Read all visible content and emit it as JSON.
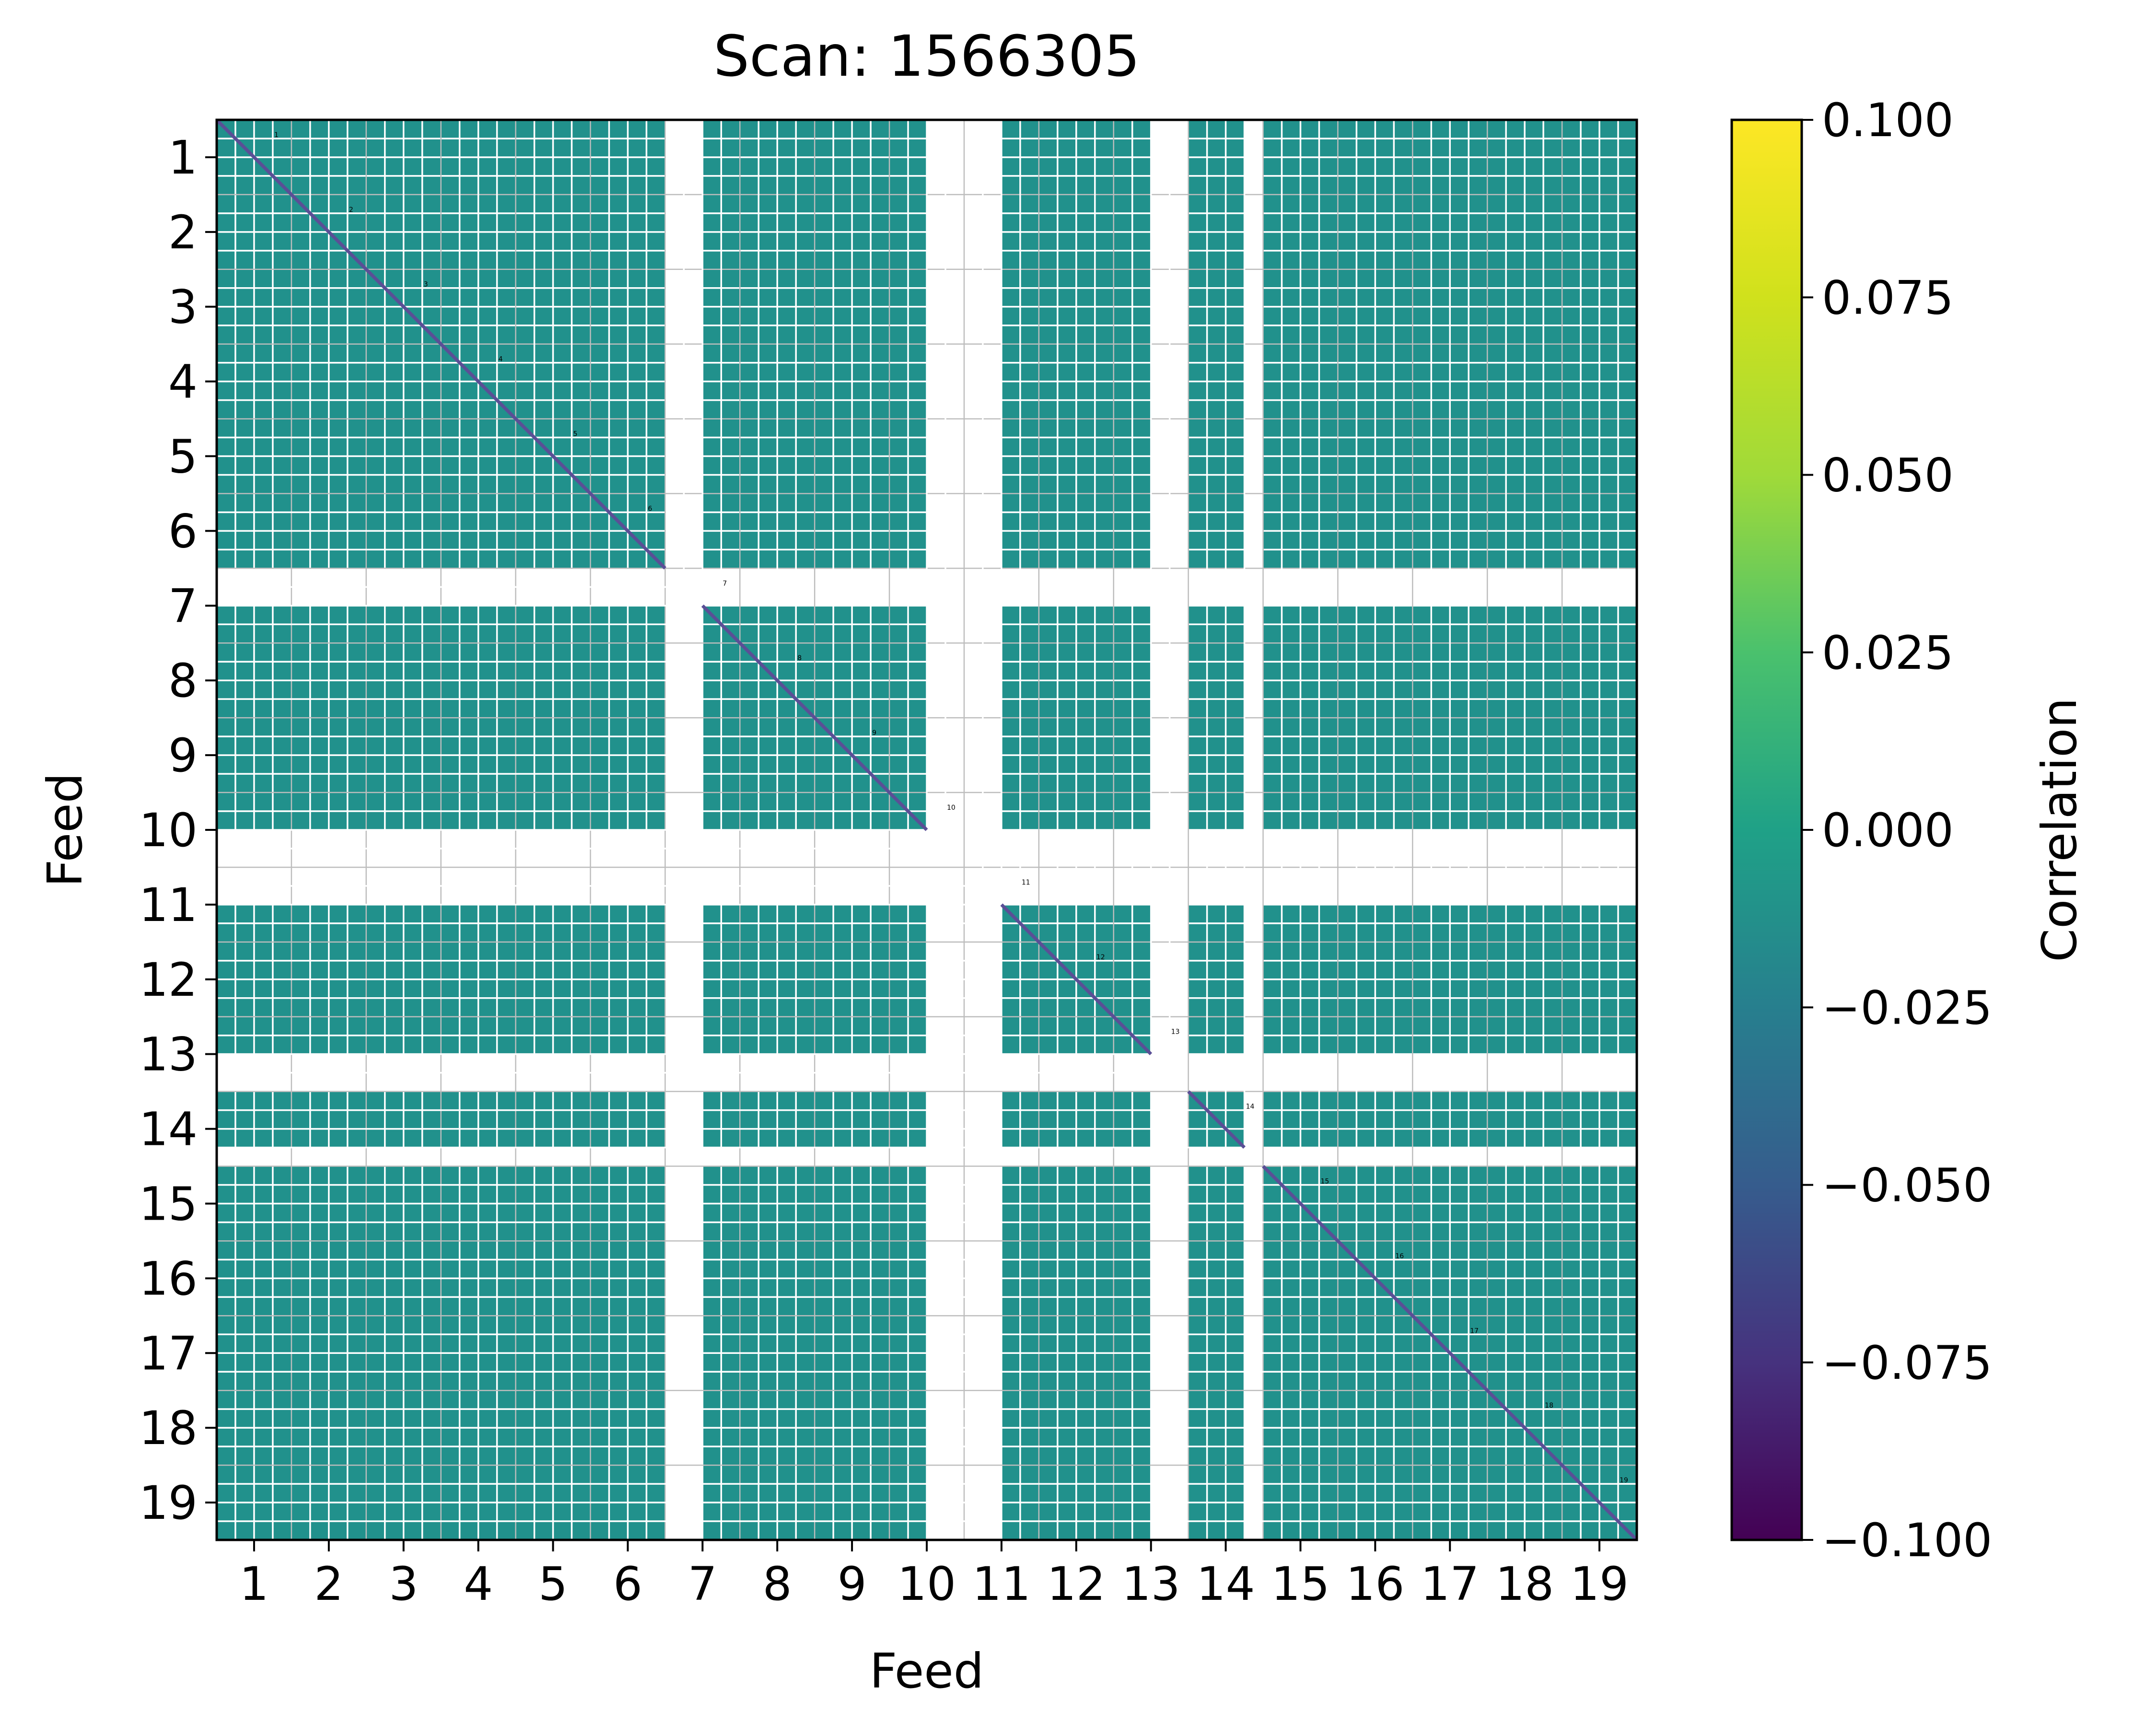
{
  "chart_data": {
    "type": "heatmap",
    "title": "Scan: 1566305",
    "xlabel": "Feed",
    "ylabel": "Feed",
    "x_ticks": [
      "1",
      "2",
      "3",
      "4",
      "5",
      "6",
      "7",
      "8",
      "9",
      "10",
      "11",
      "12",
      "13",
      "14",
      "15",
      "16",
      "17",
      "18",
      "19"
    ],
    "y_ticks": [
      "1",
      "2",
      "3",
      "4",
      "5",
      "6",
      "7",
      "8",
      "9",
      "10",
      "11",
      "12",
      "13",
      "14",
      "15",
      "16",
      "17",
      "18",
      "19"
    ],
    "xlim": [
      0.5,
      19.5
    ],
    "ylim": [
      19.5,
      0.5
    ],
    "feeds": 19,
    "value": 0.0,
    "cell_color": "#21918c",
    "diagonal_color": "#5a4f96",
    "missing_ranges": [
      [
        6.5,
        7.0
      ],
      [
        10.0,
        11.0
      ],
      [
        13.0,
        13.5
      ],
      [
        14.25,
        14.5
      ]
    ],
    "colorbar": {
      "label": "Correlation",
      "min": -0.1,
      "max": 0.1,
      "colormap": "viridis",
      "tick_values": [
        0.1,
        0.075,
        0.05,
        0.025,
        0.0,
        -0.025,
        -0.05,
        -0.075,
        -0.1
      ],
      "ticks": [
        "0.100",
        "0.075",
        "0.050",
        "0.025",
        "0.000",
        "−0.025",
        "−0.050",
        "−0.075",
        "−0.100"
      ]
    },
    "diagonal_labels": [
      "1",
      "2",
      "3",
      "4",
      "5",
      "6",
      "7",
      "8",
      "9",
      "10",
      "11",
      "12",
      "13",
      "14",
      "15",
      "16",
      "17",
      "18",
      "19"
    ],
    "grid": true
  }
}
